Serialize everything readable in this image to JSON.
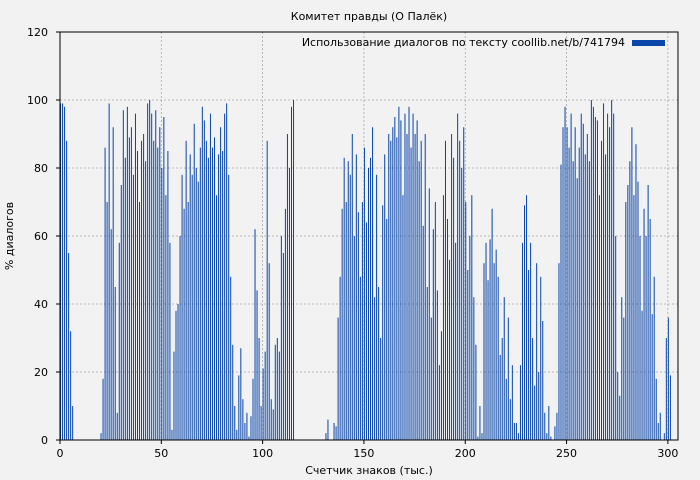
{
  "chart_data": {
    "type": "bar",
    "title": "Комитет правды (О Палёк)",
    "xlabel": "Счетчик знаков (тыс.)",
    "ylabel": "% диалогов",
    "xlim": [
      0,
      305
    ],
    "ylim": [
      0,
      120
    ],
    "x_ticks": [
      "0",
      "50",
      "100",
      "150",
      "200",
      "250",
      "300"
    ],
    "y_ticks": [
      "0",
      "20",
      "40",
      "60",
      "80",
      "100",
      "120"
    ],
    "grid": true,
    "legend_position": "top-right",
    "color": "#0a46aa",
    "series": [
      {
        "name": "Использование диалогов по тексту coollib.net/b/741794",
        "bin_width": 0.5,
        "values": [
          [
            0,
            99
          ],
          [
            1,
            99
          ],
          [
            2,
            98
          ],
          [
            3,
            88
          ],
          [
            4,
            55
          ],
          [
            5,
            32
          ],
          [
            6,
            10
          ],
          [
            7,
            0
          ],
          [
            8,
            0
          ],
          [
            9,
            0
          ],
          [
            10,
            0
          ],
          [
            11,
            0
          ],
          [
            12,
            0
          ],
          [
            13,
            0
          ],
          [
            14,
            0
          ],
          [
            15,
            0
          ],
          [
            16,
            0
          ],
          [
            17,
            0
          ],
          [
            18,
            0
          ],
          [
            19,
            0
          ],
          [
            20,
            2
          ],
          [
            21,
            18
          ],
          [
            22,
            86
          ],
          [
            23,
            70
          ],
          [
            24,
            99
          ],
          [
            25,
            62
          ],
          [
            26,
            92
          ],
          [
            27,
            45
          ],
          [
            28,
            8
          ],
          [
            29,
            58
          ],
          [
            30,
            75
          ],
          [
            31,
            97
          ],
          [
            32,
            83
          ],
          [
            33,
            98
          ],
          [
            34,
            89
          ],
          [
            35,
            92
          ],
          [
            36,
            78
          ],
          [
            37,
            96
          ],
          [
            38,
            85
          ],
          [
            39,
            70
          ],
          [
            40,
            88
          ],
          [
            41,
            90
          ],
          [
            42,
            82
          ],
          [
            43,
            99
          ],
          [
            44,
            100
          ],
          [
            45,
            96
          ],
          [
            46,
            88
          ],
          [
            47,
            97
          ],
          [
            48,
            86
          ],
          [
            49,
            92
          ],
          [
            50,
            80
          ],
          [
            51,
            95
          ],
          [
            52,
            72
          ],
          [
            53,
            85
          ],
          [
            54,
            58
          ],
          [
            55,
            3
          ],
          [
            56,
            26
          ],
          [
            57,
            38
          ],
          [
            58,
            40
          ],
          [
            59,
            60
          ],
          [
            60,
            78
          ],
          [
            61,
            68
          ],
          [
            62,
            88
          ],
          [
            63,
            70
          ],
          [
            64,
            84
          ],
          [
            65,
            78
          ],
          [
            66,
            93
          ],
          [
            67,
            80
          ],
          [
            68,
            76
          ],
          [
            69,
            86
          ],
          [
            70,
            98
          ],
          [
            71,
            94
          ],
          [
            72,
            88
          ],
          [
            73,
            83
          ],
          [
            74,
            96
          ],
          [
            75,
            86
          ],
          [
            76,
            89
          ],
          [
            77,
            72
          ],
          [
            78,
            84
          ],
          [
            79,
            92
          ],
          [
            80,
            85
          ],
          [
            81,
            96
          ],
          [
            82,
            99
          ],
          [
            83,
            78
          ],
          [
            84,
            48
          ],
          [
            85,
            28
          ],
          [
            86,
            10
          ],
          [
            87,
            3
          ],
          [
            88,
            19
          ],
          [
            89,
            27
          ],
          [
            90,
            12
          ],
          [
            91,
            5
          ],
          [
            92,
            8
          ],
          [
            93,
            1
          ],
          [
            94,
            7
          ],
          [
            95,
            18
          ],
          [
            96,
            62
          ],
          [
            97,
            44
          ],
          [
            98,
            30
          ],
          [
            99,
            10
          ],
          [
            100,
            21
          ],
          [
            101,
            26
          ],
          [
            102,
            88
          ],
          [
            103,
            52
          ],
          [
            104,
            12
          ],
          [
            105,
            9
          ],
          [
            106,
            28
          ],
          [
            107,
            30
          ],
          [
            108,
            26
          ],
          [
            109,
            60
          ],
          [
            110,
            55
          ],
          [
            111,
            68
          ],
          [
            112,
            90
          ],
          [
            113,
            80
          ],
          [
            114,
            98
          ],
          [
            115,
            100
          ],
          [
            116,
            0
          ],
          [
            117,
            0
          ],
          [
            118,
            0
          ],
          [
            119,
            0
          ],
          [
            120,
            0
          ],
          [
            121,
            0
          ],
          [
            122,
            0
          ],
          [
            123,
            0
          ],
          [
            124,
            0
          ],
          [
            125,
            0
          ],
          [
            126,
            0
          ],
          [
            127,
            0
          ],
          [
            128,
            0
          ],
          [
            129,
            0
          ],
          [
            130,
            0
          ],
          [
            131,
            2
          ],
          [
            132,
            6
          ],
          [
            133,
            0
          ],
          [
            134,
            0
          ],
          [
            135,
            5
          ],
          [
            136,
            4
          ],
          [
            137,
            36
          ],
          [
            138,
            48
          ],
          [
            139,
            68
          ],
          [
            140,
            83
          ],
          [
            141,
            70
          ],
          [
            142,
            82
          ],
          [
            143,
            78
          ],
          [
            144,
            90
          ],
          [
            145,
            60
          ],
          [
            146,
            84
          ],
          [
            147,
            67
          ],
          [
            148,
            48
          ],
          [
            149,
            70
          ],
          [
            150,
            86
          ],
          [
            151,
            64
          ],
          [
            152,
            80
          ],
          [
            153,
            83
          ],
          [
            154,
            92
          ],
          [
            155,
            42
          ],
          [
            156,
            78
          ],
          [
            157,
            45
          ],
          [
            158,
            30
          ],
          [
            159,
            69
          ],
          [
            160,
            84
          ],
          [
            161,
            65
          ],
          [
            162,
            90
          ],
          [
            163,
            88
          ],
          [
            164,
            92
          ],
          [
            165,
            95
          ],
          [
            166,
            89
          ],
          [
            167,
            98
          ],
          [
            168,
            94
          ],
          [
            169,
            72
          ],
          [
            170,
            96
          ],
          [
            171,
            90
          ],
          [
            172,
            98
          ],
          [
            173,
            86
          ],
          [
            174,
            96
          ],
          [
            175,
            90
          ],
          [
            176,
            94
          ],
          [
            177,
            82
          ],
          [
            178,
            88
          ],
          [
            179,
            63
          ],
          [
            180,
            90
          ],
          [
            181,
            45
          ],
          [
            182,
            74
          ],
          [
            183,
            36
          ],
          [
            184,
            62
          ],
          [
            185,
            70
          ],
          [
            186,
            44
          ],
          [
            187,
            22
          ],
          [
            188,
            32
          ],
          [
            189,
            72
          ],
          [
            190,
            88
          ],
          [
            191,
            65
          ],
          [
            192,
            53
          ],
          [
            193,
            90
          ],
          [
            194,
            83
          ],
          [
            195,
            58
          ],
          [
            196,
            96
          ],
          [
            197,
            88
          ],
          [
            198,
            80
          ],
          [
            199,
            92
          ],
          [
            200,
            70
          ],
          [
            201,
            50
          ],
          [
            202,
            60
          ],
          [
            203,
            72
          ],
          [
            204,
            42
          ],
          [
            205,
            28
          ],
          [
            206,
            1
          ],
          [
            207,
            10
          ],
          [
            208,
            2
          ],
          [
            209,
            52
          ],
          [
            210,
            58
          ],
          [
            211,
            47
          ],
          [
            212,
            59
          ],
          [
            213,
            68
          ],
          [
            214,
            52
          ],
          [
            215,
            56
          ],
          [
            216,
            48
          ],
          [
            217,
            25
          ],
          [
            218,
            30
          ],
          [
            219,
            42
          ],
          [
            220,
            18
          ],
          [
            221,
            36
          ],
          [
            222,
            12
          ],
          [
            223,
            22
          ],
          [
            224,
            5
          ],
          [
            225,
            5
          ],
          [
            226,
            2
          ],
          [
            227,
            22
          ],
          [
            228,
            58
          ],
          [
            229,
            69
          ],
          [
            230,
            72
          ],
          [
            231,
            50
          ],
          [
            232,
            58
          ],
          [
            233,
            30
          ],
          [
            234,
            16
          ],
          [
            235,
            52
          ],
          [
            236,
            20
          ],
          [
            237,
            48
          ],
          [
            238,
            35
          ],
          [
            239,
            8
          ],
          [
            240,
            2
          ],
          [
            241,
            10
          ],
          [
            242,
            1
          ],
          [
            243,
            0
          ],
          [
            244,
            4
          ],
          [
            245,
            8
          ],
          [
            246,
            52
          ],
          [
            247,
            81
          ],
          [
            248,
            92
          ],
          [
            249,
            98
          ],
          [
            250,
            92
          ],
          [
            251,
            86
          ],
          [
            252,
            96
          ],
          [
            253,
            82
          ],
          [
            254,
            92
          ],
          [
            255,
            77
          ],
          [
            256,
            86
          ],
          [
            257,
            96
          ],
          [
            258,
            93
          ],
          [
            259,
            84
          ],
          [
            260,
            90
          ],
          [
            261,
            82
          ],
          [
            262,
            100
          ],
          [
            263,
            98
          ],
          [
            264,
            95
          ],
          [
            265,
            94
          ],
          [
            266,
            72
          ],
          [
            267,
            88
          ],
          [
            268,
            99
          ],
          [
            269,
            84
          ],
          [
            270,
            96
          ],
          [
            271,
            92
          ],
          [
            272,
            100
          ],
          [
            273,
            96
          ],
          [
            274,
            60
          ],
          [
            275,
            20
          ],
          [
            276,
            13
          ],
          [
            277,
            42
          ],
          [
            278,
            36
          ],
          [
            279,
            70
          ],
          [
            280,
            75
          ],
          [
            281,
            82
          ],
          [
            282,
            92
          ],
          [
            283,
            72
          ],
          [
            284,
            87
          ],
          [
            285,
            76
          ],
          [
            286,
            60
          ],
          [
            287,
            38
          ],
          [
            288,
            68
          ],
          [
            289,
            60
          ],
          [
            290,
            75
          ],
          [
            291,
            65
          ],
          [
            292,
            37
          ],
          [
            293,
            48
          ],
          [
            294,
            18
          ],
          [
            295,
            5
          ],
          [
            296,
            8
          ],
          [
            297,
            0
          ],
          [
            298,
            2
          ],
          [
            299,
            30
          ],
          [
            300,
            36
          ],
          [
            301,
            19
          ]
        ]
      }
    ]
  }
}
